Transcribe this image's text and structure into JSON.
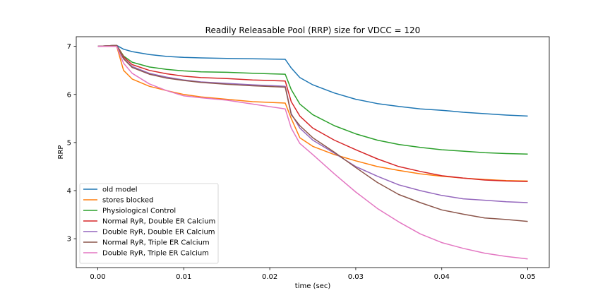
{
  "chart_data": {
    "type": "line",
    "title": "Readily Releasable Pool (RRP) size for VDCC = 120",
    "xlabel": "time (sec)",
    "ylabel": "RRP",
    "xlim": [
      -0.0025,
      0.0525
    ],
    "ylim": [
      2.4,
      7.2
    ],
    "xticks": [
      0.0,
      0.01,
      0.02,
      0.03,
      0.04,
      0.05
    ],
    "xtick_labels": [
      "0.00",
      "0.01",
      "0.02",
      "0.03",
      "0.04",
      "0.05"
    ],
    "yticks": [
      3,
      4,
      5,
      6,
      7
    ],
    "ytick_labels": [
      "3",
      "4",
      "5",
      "6",
      "7"
    ],
    "grid": false,
    "legend_position": "lower-left",
    "x": [
      0.0,
      0.0022,
      0.003,
      0.004,
      0.006,
      0.008,
      0.01,
      0.012,
      0.015,
      0.018,
      0.0218,
      0.0225,
      0.0235,
      0.025,
      0.0275,
      0.03,
      0.0325,
      0.035,
      0.0375,
      0.04,
      0.0425,
      0.045,
      0.0475,
      0.05
    ],
    "series": [
      {
        "name": "old model",
        "color": "#1f77b4",
        "values": [
          7.0,
          7.02,
          6.94,
          6.89,
          6.83,
          6.79,
          6.77,
          6.76,
          6.75,
          6.74,
          6.73,
          6.55,
          6.35,
          6.2,
          6.03,
          5.9,
          5.81,
          5.75,
          5.7,
          5.67,
          5.63,
          5.6,
          5.57,
          5.55
        ]
      },
      {
        "name": "stores blocked",
        "color": "#ff7f0e",
        "values": [
          7.0,
          7.0,
          6.5,
          6.32,
          6.17,
          6.08,
          6.0,
          5.95,
          5.9,
          5.85,
          5.82,
          5.5,
          5.1,
          4.92,
          4.75,
          4.62,
          4.5,
          4.42,
          4.35,
          4.3,
          4.26,
          4.23,
          4.21,
          4.2
        ]
      },
      {
        "name": "Physiological Control",
        "color": "#2ca02c",
        "values": [
          7.0,
          7.02,
          6.8,
          6.67,
          6.57,
          6.52,
          6.49,
          6.47,
          6.46,
          6.44,
          6.42,
          6.1,
          5.8,
          5.58,
          5.35,
          5.18,
          5.05,
          4.96,
          4.9,
          4.85,
          4.82,
          4.79,
          4.77,
          4.76
        ]
      },
      {
        "name": "Normal RyR, Double ER Calcium",
        "color": "#d62728",
        "values": [
          7.0,
          7.02,
          6.78,
          6.62,
          6.5,
          6.43,
          6.38,
          6.35,
          6.33,
          6.3,
          6.28,
          5.85,
          5.55,
          5.3,
          5.05,
          4.85,
          4.66,
          4.5,
          4.4,
          4.31,
          4.26,
          4.22,
          4.2,
          4.19
        ]
      },
      {
        "name": "Double RyR, Double ER Calcium",
        "color": "#9467bd",
        "values": [
          7.0,
          7.02,
          6.75,
          6.58,
          6.44,
          6.36,
          6.3,
          6.26,
          6.23,
          6.2,
          6.17,
          5.6,
          5.3,
          5.05,
          4.78,
          4.5,
          4.3,
          4.12,
          4.0,
          3.9,
          3.83,
          3.8,
          3.77,
          3.75
        ]
      },
      {
        "name": "Normal RyR, Triple ER Calcium",
        "color": "#8c564b",
        "values": [
          7.0,
          7.02,
          6.74,
          6.56,
          6.42,
          6.34,
          6.29,
          6.25,
          6.21,
          6.18,
          6.15,
          5.58,
          5.35,
          5.1,
          4.8,
          4.48,
          4.17,
          3.92,
          3.75,
          3.6,
          3.51,
          3.43,
          3.4,
          3.36
        ]
      },
      {
        "name": "Double RyR, Triple ER Calcium",
        "color": "#e377c2",
        "values": [
          7.0,
          7.0,
          6.65,
          6.44,
          6.22,
          6.08,
          5.97,
          5.93,
          5.88,
          5.8,
          5.7,
          5.3,
          4.98,
          4.75,
          4.35,
          3.97,
          3.63,
          3.35,
          3.1,
          2.92,
          2.8,
          2.7,
          2.63,
          2.58
        ]
      }
    ]
  }
}
